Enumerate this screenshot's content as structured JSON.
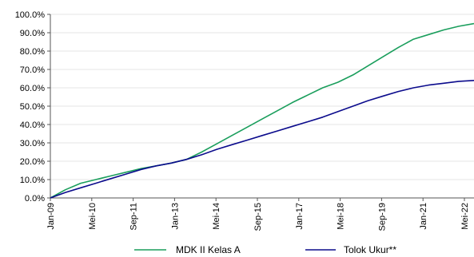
{
  "chart_data": {
    "type": "line",
    "title": "",
    "xlabel": "",
    "ylabel": "",
    "x": [
      "Jan-09",
      "Jun-09",
      "Jan-10",
      "Jun-10",
      "Jan-11",
      "Jun-11",
      "Jan-12",
      "Jun-12",
      "Jan-13",
      "Jun-13",
      "Jan-14",
      "Jun-14",
      "Jan-15",
      "Jun-15",
      "Jan-16",
      "Jun-16",
      "Jan-17",
      "Jun-17",
      "Jan-18",
      "Jun-18",
      "Jan-19",
      "Jun-19",
      "Jan-20",
      "Jun-20",
      "Jan-21",
      "Jun-21",
      "Jan-22",
      "Jun-22",
      "Oct-22"
    ],
    "x_tick_labels": [
      "Jan-09",
      "Mei-10",
      "Sep-11",
      "Jan-13",
      "Mei-14",
      "Sep-15",
      "Jan-17",
      "Mei-18",
      "Sep-19",
      "Jan-21",
      "Mei-22"
    ],
    "y_tick_labels": [
      "0.0%",
      "10.0%",
      "20.0%",
      "30.0%",
      "40.0%",
      "50.0%",
      "60.0%",
      "70.0%",
      "80.0%",
      "90.0%",
      "100.0%"
    ],
    "ylim": [
      0,
      100
    ],
    "grid": true,
    "legend": "bottom",
    "series": [
      {
        "name": "MDK II Kelas A",
        "color": "#1a9e5c",
        "values": [
          0,
          4.5,
          8,
          10,
          12,
          14,
          16,
          17.5,
          19,
          21,
          25,
          29.5,
          34,
          38.5,
          43,
          47.5,
          52,
          56,
          60,
          63,
          67,
          72,
          77,
          82,
          86.5,
          89,
          91.5,
          93.5,
          95
        ]
      },
      {
        "name": "Tolok Ukur**",
        "color": "#0b0b8c",
        "values": [
          0,
          3,
          5.5,
          8,
          10.5,
          13,
          15.5,
          17.5,
          19,
          21,
          23.5,
          26.5,
          29,
          31.5,
          34,
          36.5,
          39,
          41.5,
          44,
          47,
          50,
          53,
          55.5,
          58,
          60,
          61.5,
          62.5,
          63.5,
          64
        ]
      }
    ]
  }
}
